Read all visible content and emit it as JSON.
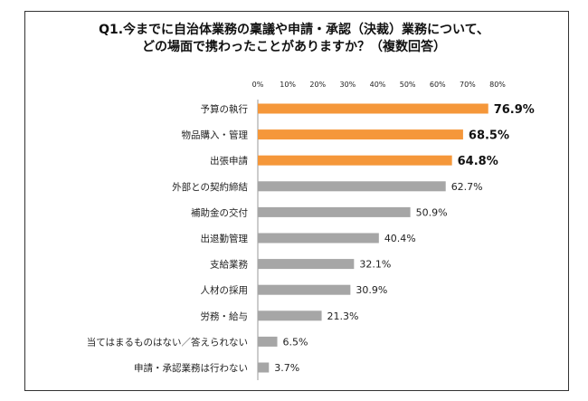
{
  "chart_data": {
    "type": "bar",
    "orientation": "horizontal",
    "title_lines": [
      "Q1.今までに自治体業務の稟議や申請・承認（決裁）業務について、",
      "どの場面で携わったことがありますか？（複数回答）"
    ],
    "xlim": [
      0,
      80
    ],
    "ticks": [
      "0%",
      "10%",
      "20%",
      "30%",
      "40%",
      "50%",
      "60%",
      "70%",
      "80%"
    ],
    "grid": false,
    "categories": [
      "予算の執行",
      "物品購入・管理",
      "出張申請",
      "外部との契約締結",
      "補助金の交付",
      "出退勤管理",
      "支給業務",
      "人材の採用",
      "労務・給与",
      "当てはまるものはない／答えられない",
      "申請・承認業務は行わない"
    ],
    "values": [
      76.9,
      68.5,
      64.8,
      62.7,
      50.9,
      40.4,
      32.1,
      30.9,
      21.3,
      6.5,
      3.7
    ],
    "value_labels": [
      "76.9%",
      "68.5%",
      "64.8%",
      "62.7%",
      "50.9%",
      "40.4%",
      "32.1%",
      "30.9%",
      "21.3%",
      "6.5%",
      "3.7%"
    ],
    "highlight_count": 3,
    "colors": {
      "highlight": "#F5973A",
      "normal": "#A6A6A6",
      "axis": "#999999"
    }
  }
}
